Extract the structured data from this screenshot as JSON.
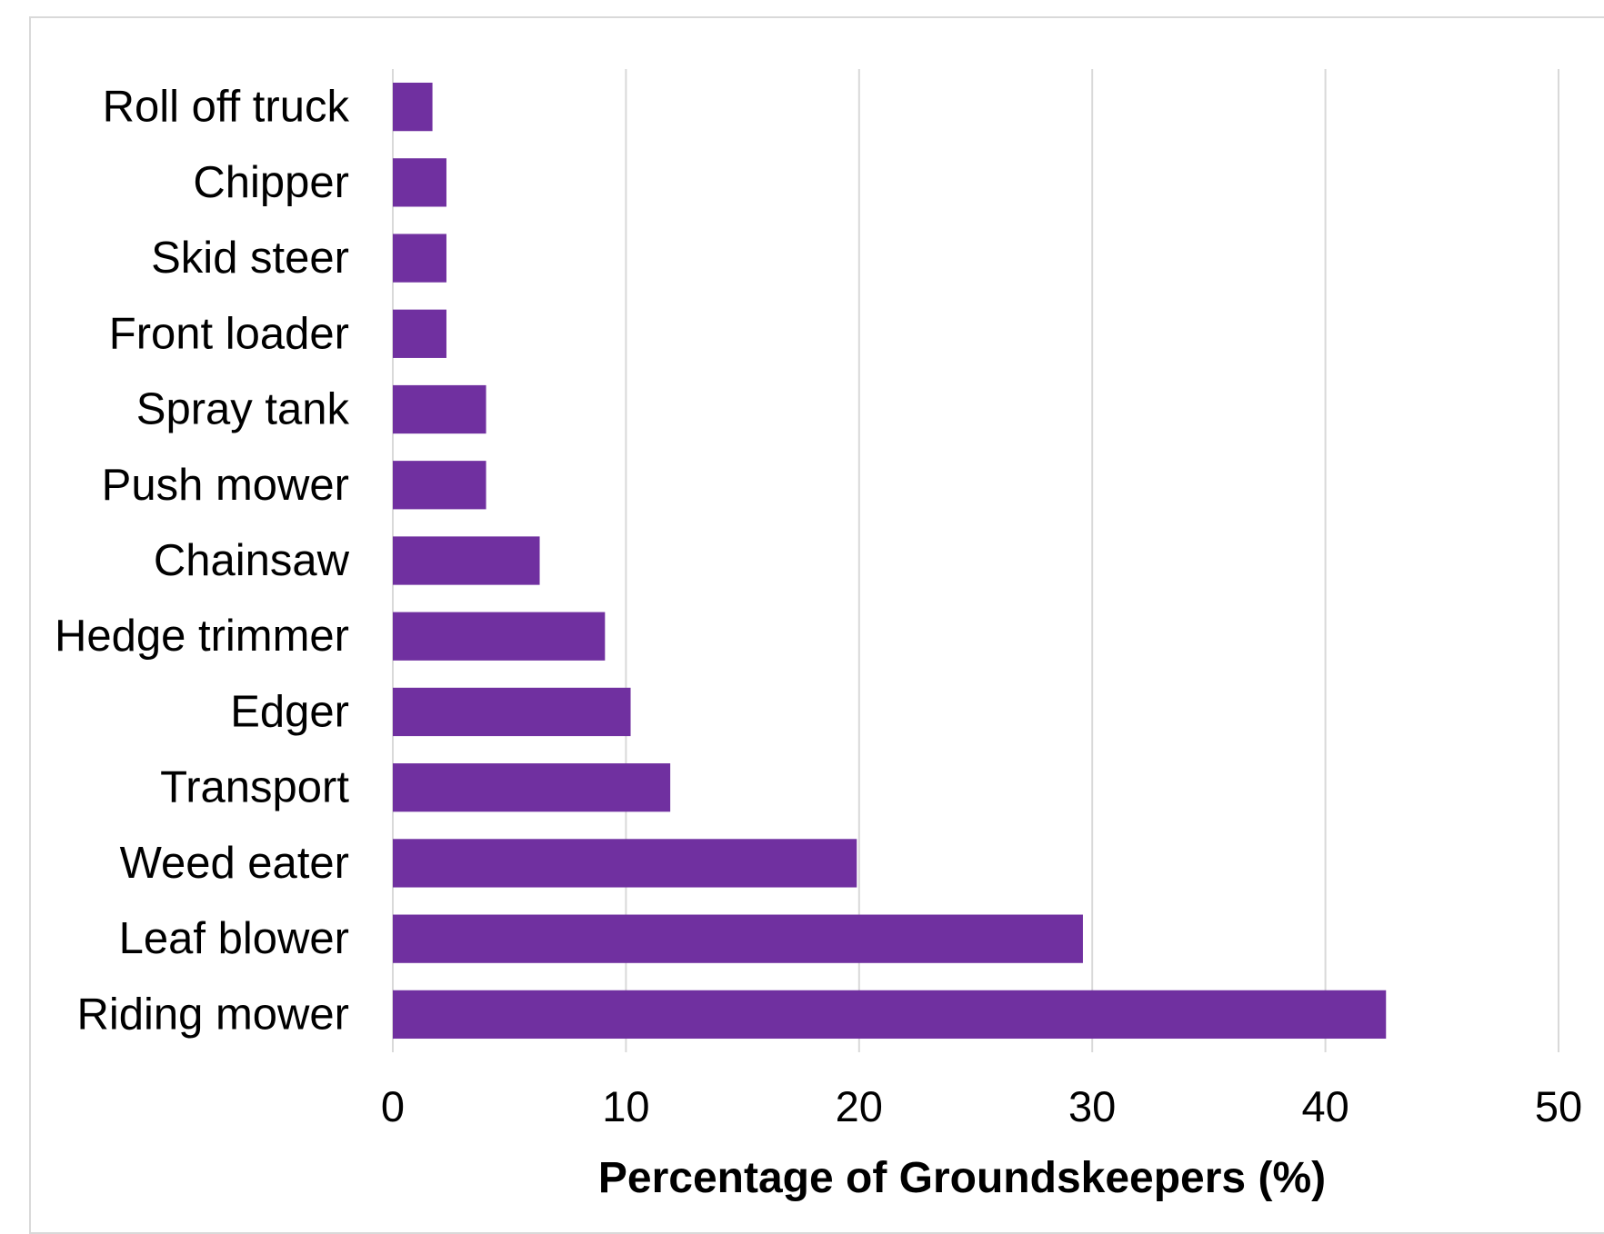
{
  "chart_data": {
    "type": "bar",
    "orientation": "horizontal",
    "title": "",
    "xlabel": "Percentage of Groundskeepers (%)",
    "ylabel": "",
    "categories": [
      "Roll off truck",
      "Chipper",
      "Skid steer",
      "Front loader",
      "Spray tank",
      "Push mower",
      "Chainsaw",
      "Hedge trimmer",
      "Edger",
      "Transport",
      "Weed eater",
      "Leaf blower",
      "Riding mower"
    ],
    "values": [
      1.7,
      2.3,
      2.3,
      2.3,
      4.0,
      4.0,
      6.3,
      9.1,
      10.2,
      11.9,
      19.9,
      29.6,
      42.6
    ],
    "xlim": [
      0,
      50
    ],
    "xticks": [
      0,
      10,
      20,
      30,
      40,
      50
    ],
    "grid": "vertical",
    "legend": "none",
    "colors": {
      "bar": "#7030a0",
      "grid": "#d9d9d9",
      "frame": "#d9d9d9",
      "text": "#000000"
    }
  }
}
